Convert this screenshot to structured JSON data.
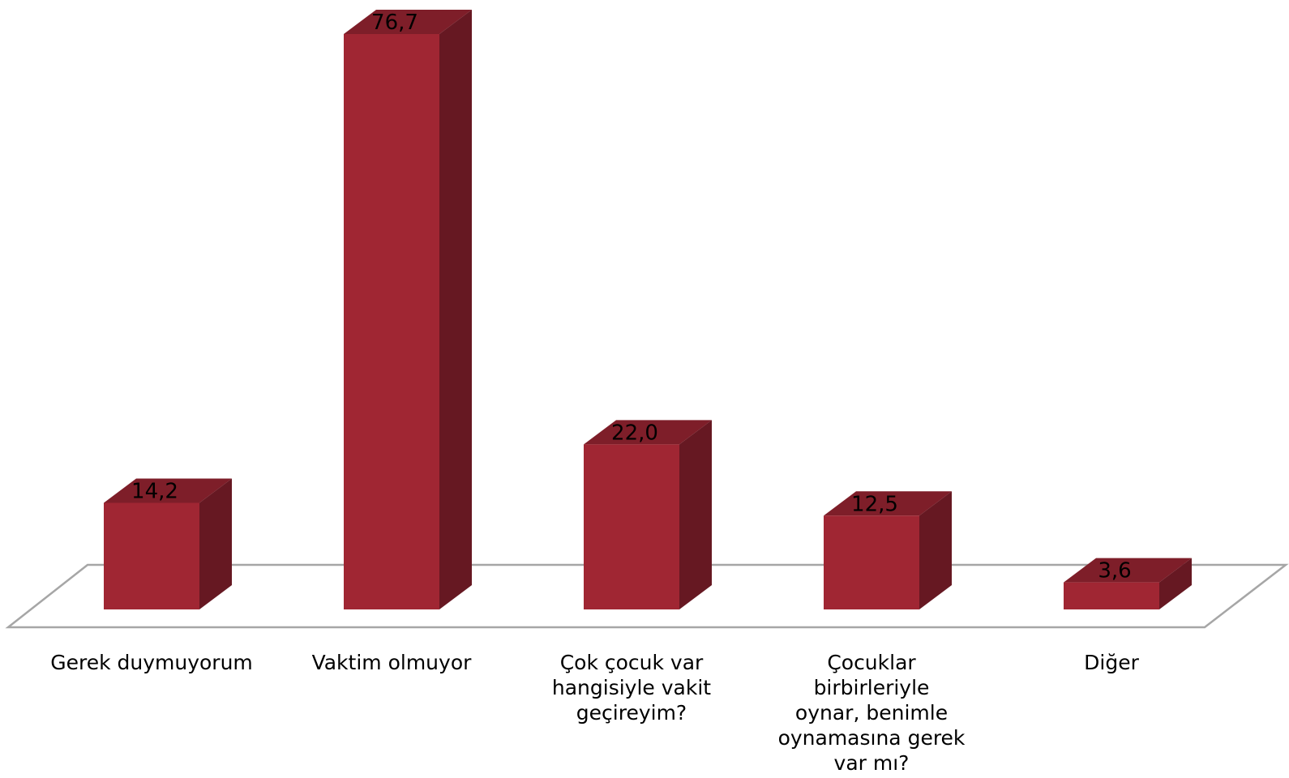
{
  "chart_data": {
    "type": "bar",
    "categories": [
      "Gerek duymuyorum",
      "Vaktim olmuyor",
      "Çok çocuk var\nhangisiyle vakit\ngeçireyim?",
      "Çocuklar\nbirbirleriyle\noynar,  benimle\noynamasına gerek\nvar mı?",
      "Diğer"
    ],
    "values": [
      14.2,
      76.7,
      22.0,
      12.5,
      3.6
    ],
    "value_labels": [
      "14,2",
      "76,7",
      "22,0",
      "12,5",
      "3,6"
    ],
    "title": "",
    "xlabel": "",
    "ylabel": "",
    "ylim": [
      0,
      76.7
    ],
    "grid": false,
    "legend": "none",
    "style": "3d-column",
    "colors": {
      "front": "#a02633",
      "side": "#661822",
      "top": "#7e1e29",
      "floor_line": "#a6a6a6"
    }
  }
}
